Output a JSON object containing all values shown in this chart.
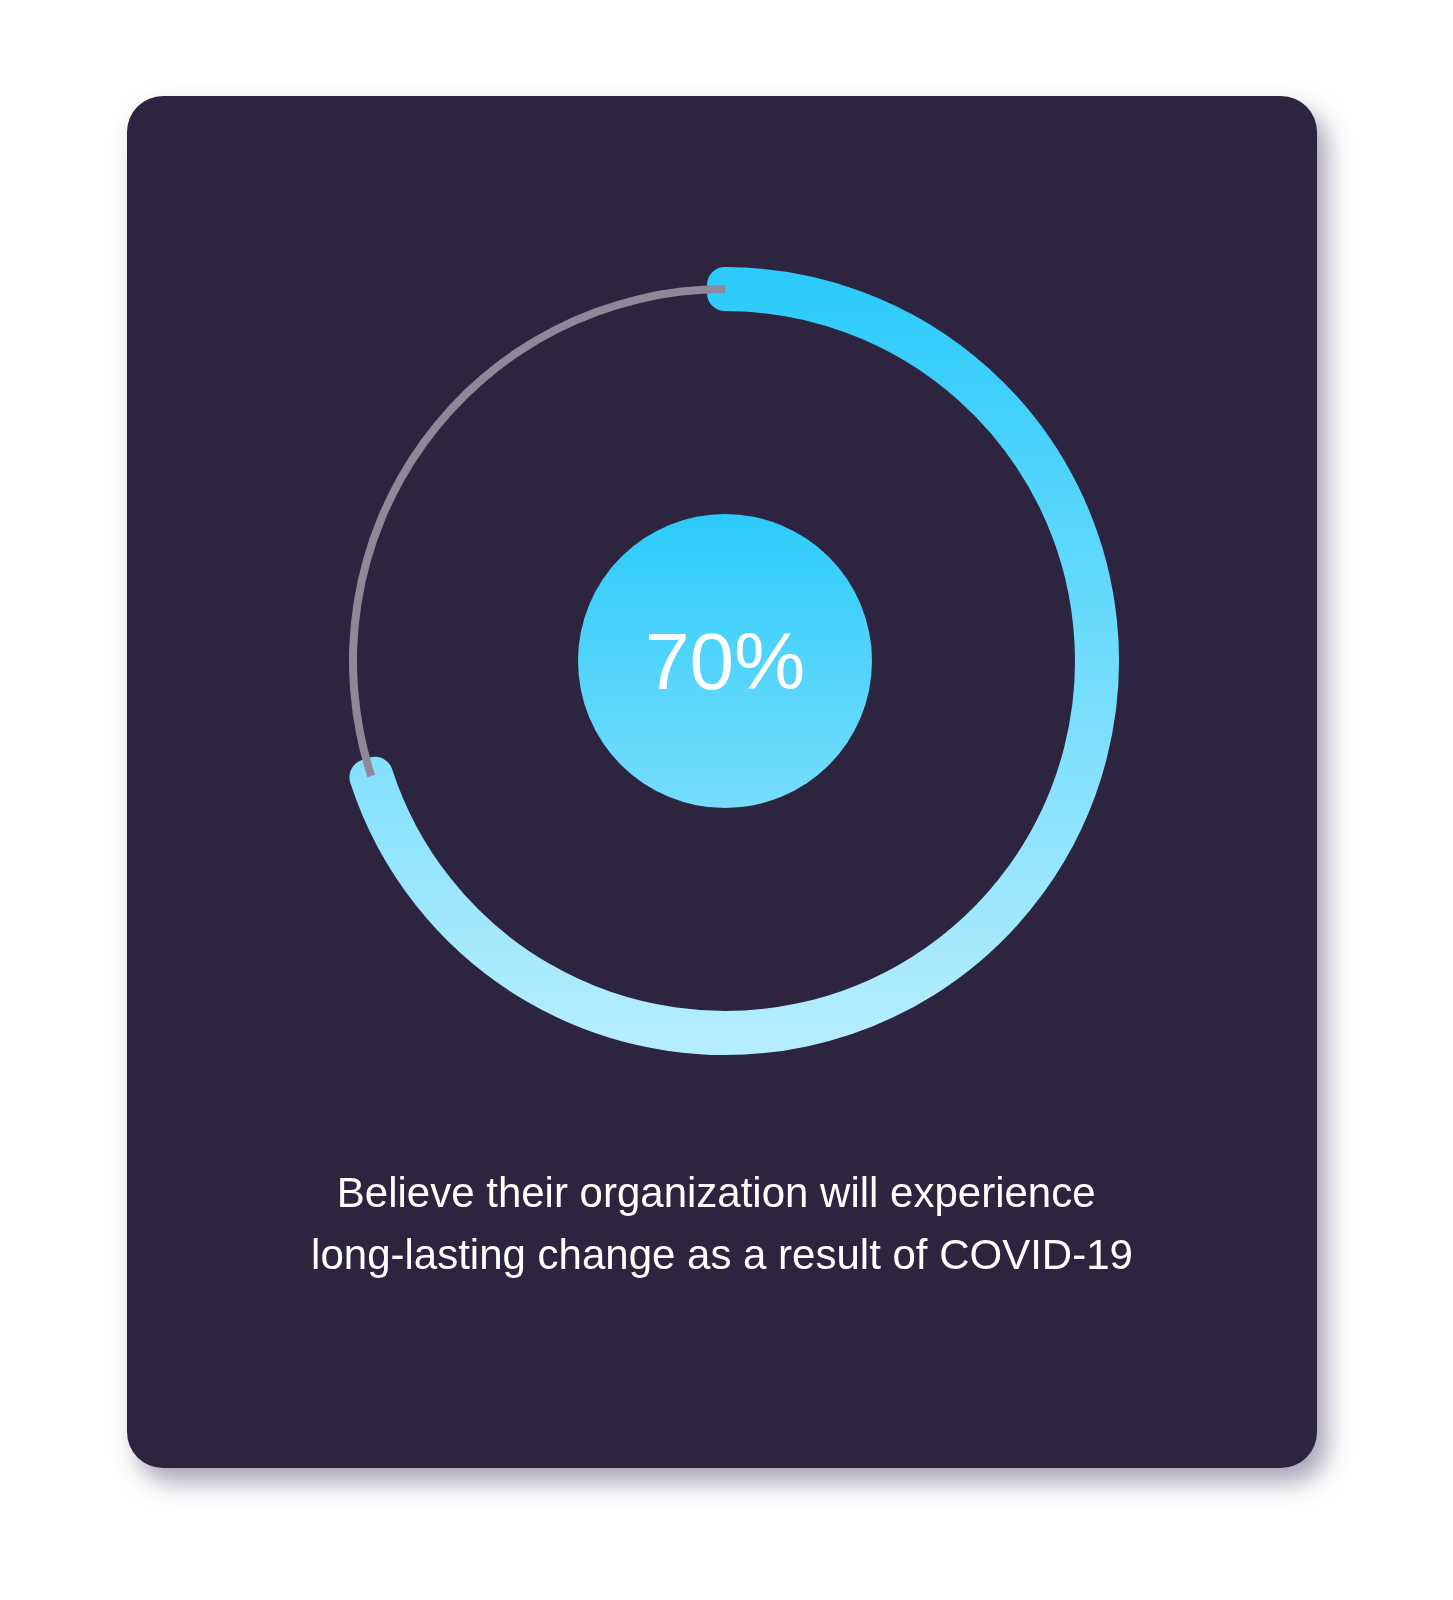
{
  "chart_data": {
    "type": "donut",
    "title": "Believe their organization will experience long-lasting change as a result of COVID-19",
    "categories": [
      null,
      null
    ],
    "values": [
      70,
      30
    ],
    "colors": [
      "#2ccbfb",
      "#8e8899"
    ],
    "value_labels": [
      "70%",
      null
    ]
  }
}
